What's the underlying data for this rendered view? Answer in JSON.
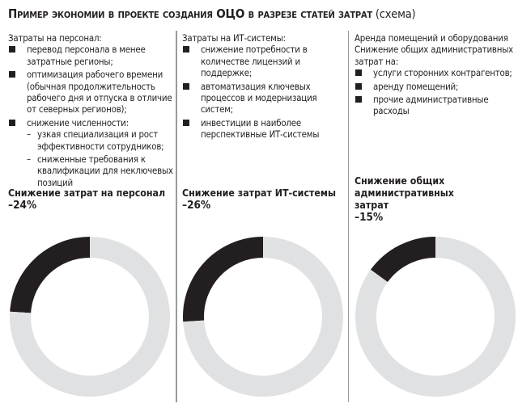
{
  "title": {
    "bold": "Пример экономии в проекте создания ОЦО в разрезе статей затрат",
    "regular": "(схема)"
  },
  "columns": [
    {
      "heading": "Затраты на персонал:",
      "intro": "",
      "items": [
        {
          "text": "перевод персонала в менее затратные регионы;"
        },
        {
          "text": "оптимизация рабочего времени (обычная продолжительность рабочего дня и отпуска в отличие от северных регионов);"
        },
        {
          "text": "снижение численности:",
          "sub": [
            "узкая специализация и рост эффективности сотрудников;",
            "сниженные требования к квалификации для неключевых позиций"
          ]
        }
      ],
      "summary_label": "Снижение затрат на персонал",
      "summary_value": "–24%"
    },
    {
      "heading": "Затраты на ИТ-системы:",
      "intro": "",
      "items": [
        {
          "text": "снижение потребности в количестве лицензий и поддержке;"
        },
        {
          "text": "автоматизация ключевых процессов и модернизация систем;"
        },
        {
          "text": "инвестиции в наиболее перспективные ИТ-системы"
        }
      ],
      "summary_label": "Снижение затрат ИТ-системы",
      "summary_value": "–26%"
    },
    {
      "heading": "Аренда помещений и оборудования",
      "intro": "Снижение общих административных затрат на:",
      "items": [
        {
          "text": "услуги сторонних контрагентов;"
        },
        {
          "text": "аренду помещений;"
        },
        {
          "text": "прочие административные расходы"
        }
      ],
      "summary_label": "Снижение общих административных затрат",
      "summary_value": "–15%"
    }
  ],
  "chart_data": [
    {
      "type": "pie",
      "variant": "donut",
      "title": "Снижение затрат на персонал",
      "values": [
        24,
        76
      ],
      "colors": [
        "#231f20",
        "#e0e1e3"
      ]
    },
    {
      "type": "pie",
      "variant": "donut",
      "title": "Снижение затрат ИТ-системы",
      "values": [
        26,
        74
      ],
      "colors": [
        "#231f20",
        "#e0e1e3"
      ]
    },
    {
      "type": "pie",
      "variant": "donut",
      "title": "Снижение общих административных затрат",
      "values": [
        15,
        85
      ],
      "colors": [
        "#231f20",
        "#e0e1e3"
      ]
    }
  ]
}
